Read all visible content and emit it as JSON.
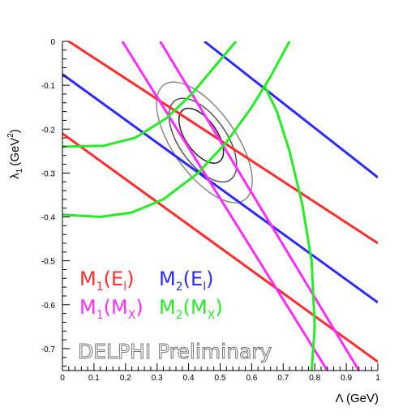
{
  "chart_data": {
    "type": "line",
    "xlabel": "Λ (GeV)",
    "ylabel_main": "λ",
    "ylabel_sub": "1",
    "ylabel_unit": "(GeV",
    "ylabel_sup": "2",
    "ylabel_close": ")",
    "xlim": [
      0,
      1
    ],
    "ylim": [
      -0.75,
      0
    ],
    "xticks": [
      "0",
      "0.1",
      "0.2",
      "0.3",
      "0.4",
      "0.5",
      "0.6",
      "0.7",
      "0.8",
      "0.9",
      "1"
    ],
    "yticks": [
      "0",
      "-0.1",
      "-0.2",
      "-0.3",
      "-0.4",
      "-0.5",
      "-0.6",
      "-0.7"
    ],
    "watermark": "DELPHI Preliminary",
    "legend": [
      {
        "base": "M",
        "sub1": "1",
        "open": "(",
        "arg": "E",
        "sub2": "l",
        "close": ")",
        "color": "#ff2a2a"
      },
      {
        "base": "M",
        "sub1": "2",
        "open": "(",
        "arg": "E",
        "sub2": "l",
        "close": ")",
        "color": "#2a2aff"
      },
      {
        "base": "M",
        "sub1": "1",
        "open": "(",
        "arg": "M",
        "sub2": "X",
        "close": ")",
        "color": "#ff2aff"
      },
      {
        "base": "M",
        "sub1": "2",
        "open": "(",
        "arg": "M",
        "sub2": "X",
        "close": ")",
        "color": "#22ee22"
      }
    ],
    "bands": [
      {
        "color": "#ff2a2a",
        "points": [
          [
            0.02,
            0.0
          ],
          [
            1.0,
            -0.46
          ]
        ]
      },
      {
        "color": "#ff2a2a",
        "points": [
          [
            0.0,
            -0.21
          ],
          [
            1.0,
            -0.73
          ]
        ]
      },
      {
        "color": "#2a2aff",
        "points": [
          [
            0.0,
            -0.075
          ],
          [
            1.0,
            -0.595
          ]
        ]
      },
      {
        "color": "#2a2aff",
        "points": [
          [
            0.45,
            0.0
          ],
          [
            1.0,
            -0.31
          ]
        ]
      },
      {
        "color": "#ff2aff",
        "points": [
          [
            0.19,
            0.0
          ],
          [
            0.84,
            -0.75
          ]
        ]
      },
      {
        "color": "#ff2aff",
        "points": [
          [
            0.31,
            0.0
          ],
          [
            0.94,
            -0.75
          ]
        ]
      },
      {
        "color": "#22ee22",
        "points": [
          [
            0.0,
            -0.24
          ],
          [
            0.13,
            -0.238
          ],
          [
            0.23,
            -0.22
          ],
          [
            0.33,
            -0.175
          ],
          [
            0.41,
            -0.12
          ],
          [
            0.48,
            -0.06
          ],
          [
            0.55,
            0.0
          ]
        ]
      },
      {
        "color": "#22ee22",
        "points": [
          [
            0.0,
            -0.395
          ],
          [
            0.12,
            -0.4
          ],
          [
            0.22,
            -0.39
          ],
          [
            0.32,
            -0.36
          ],
          [
            0.43,
            -0.3
          ],
          [
            0.52,
            -0.23
          ],
          [
            0.6,
            -0.15
          ],
          [
            0.66,
            -0.08
          ],
          [
            0.69,
            -0.04
          ],
          [
            0.72,
            0.0
          ]
        ]
      },
      {
        "color": "#22ee22",
        "points": [
          [
            0.79,
            -0.75
          ],
          [
            0.8,
            -0.65
          ],
          [
            0.79,
            -0.5
          ],
          [
            0.76,
            -0.37
          ],
          [
            0.72,
            -0.25
          ],
          [
            0.68,
            -0.16
          ],
          [
            0.64,
            -0.1
          ]
        ]
      }
    ],
    "contours": [
      {
        "color": "#222222",
        "center": [
          0.44,
          -0.215
        ],
        "rx": 0.05,
        "ry": 0.072,
        "angle": 145
      },
      {
        "color": "#555555",
        "center": [
          0.445,
          -0.225
        ],
        "rx": 0.075,
        "ry": 0.11,
        "angle": 145
      },
      {
        "color": "#888888",
        "center": [
          0.45,
          -0.23
        ],
        "rx": 0.1,
        "ry": 0.16,
        "angle": 145
      }
    ]
  }
}
